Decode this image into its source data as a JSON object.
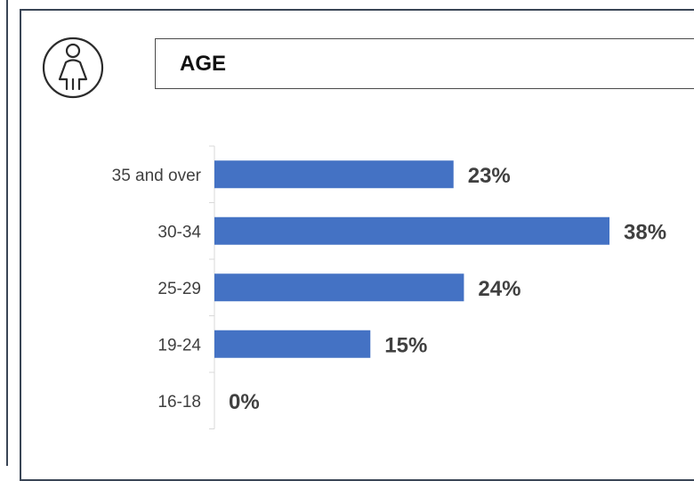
{
  "title": "AGE",
  "chart_data": {
    "type": "bar",
    "orientation": "horizontal",
    "title": "AGE",
    "categories": [
      "35 and over",
      "30-34",
      "25-29",
      "19-24",
      "16-18"
    ],
    "values": [
      23,
      38,
      24,
      15,
      0
    ],
    "data_labels": [
      "23%",
      "38%",
      "24%",
      "15%",
      "0%"
    ],
    "xlabel": "",
    "ylabel": "",
    "xlim": [
      0,
      38
    ],
    "grid": false,
    "legend": "none",
    "bar_color": "#4472C4"
  }
}
